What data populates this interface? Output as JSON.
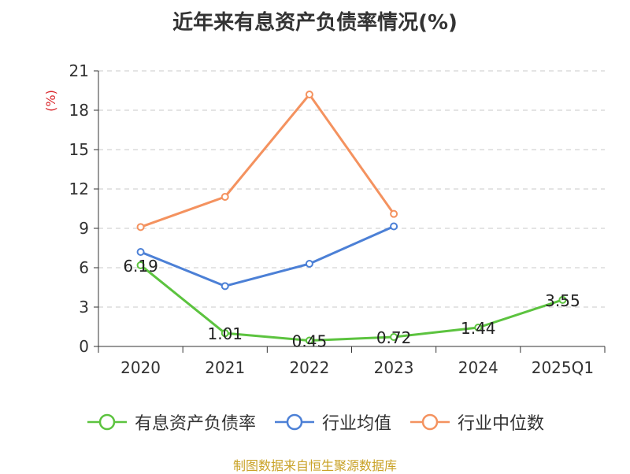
{
  "chart_data": {
    "type": "line",
    "title": "近年来有息资产负债率情况(%)",
    "ylabel": "(%)",
    "categories": [
      "2020",
      "2021",
      "2022",
      "2023",
      "2024",
      "2025Q1"
    ],
    "yticks": [
      "0",
      "3",
      "6",
      "9",
      "12",
      "15",
      "18",
      "21"
    ],
    "ylim": [
      0,
      21
    ],
    "grid": true,
    "legend_position": "bottom",
    "series": [
      {
        "name": "有息资产负债率",
        "color": "#5cc33f",
        "values": [
          6.19,
          1.01,
          0.45,
          0.72,
          1.44,
          3.55
        ],
        "labels": [
          "6.19",
          "1.01",
          "0.45",
          "0.72",
          "1.44",
          "3.55"
        ]
      },
      {
        "name": "行业均值",
        "color": "#4c80d6",
        "values": [
          7.2,
          4.6,
          6.3,
          9.15,
          null,
          null
        ]
      },
      {
        "name": "行业中位数",
        "color": "#f4925f",
        "values": [
          9.1,
          11.4,
          19.2,
          10.1,
          null,
          null
        ]
      }
    ]
  },
  "footer": {
    "source": "制图数据来自恒生聚源数据库"
  }
}
